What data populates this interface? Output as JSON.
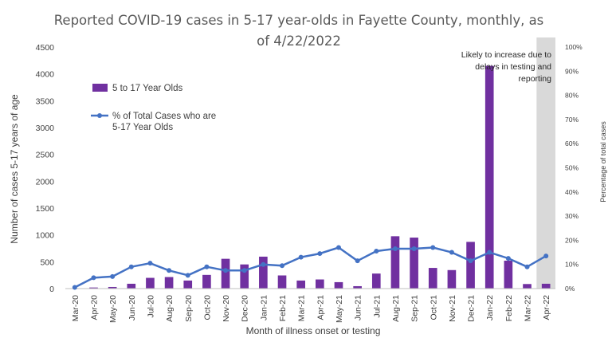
{
  "chart_data": {
    "type": "bar",
    "title_lines": [
      "Reported COVID-19 cases in 5-17 year-olds in Fayette County, monthly, as",
      "of 4/22/2022"
    ],
    "xlabel": "Month of illness onset or testing",
    "ylabel": "Number of cases 5-17 years of age",
    "y2label": "Percentage of total cases",
    "categories": [
      "Mar-20",
      "Apr-20",
      "May-20",
      "Jun-20",
      "Jul-20",
      "Aug-20",
      "Sep-20",
      "Oct-20",
      "Nov-20",
      "Dec-20",
      "Jan-21",
      "Feb-21",
      "Mar-21",
      "Apr-21",
      "May-21",
      "Jun-21",
      "Jul-21",
      "Aug-21",
      "Sep-21",
      "Oct-21",
      "Nov-21",
      "Dec-21",
      "Jan-22",
      "Feb-22",
      "Mar-22",
      "Apr-22"
    ],
    "ylim": [
      0,
      4500
    ],
    "yticks": [
      "0",
      "500",
      "1000",
      "1500",
      "2000",
      "2500",
      "3000",
      "3500",
      "4000",
      "4500"
    ],
    "y2lim": [
      0,
      100
    ],
    "y2ticks": [
      "0%",
      "10%",
      "20%",
      "30%",
      "40%",
      "50%",
      "60%",
      "70%",
      "80%",
      "90%",
      "100%"
    ],
    "series": [
      {
        "name": "5 to 17 Year Olds",
        "kind": "bar",
        "axis": "left",
        "color": "#7030A0",
        "values": [
          5,
          20,
          30,
          90,
          200,
          215,
          150,
          255,
          555,
          450,
          595,
          245,
          150,
          170,
          120,
          45,
          280,
          975,
          950,
          385,
          345,
          870,
          4150,
          520,
          85,
          90
        ]
      },
      {
        "name_lines": [
          "% of Total Cases who are",
          "5-17 Year Olds"
        ],
        "kind": "line",
        "axis": "right",
        "color": "#4472C4",
        "values": [
          0.5,
          4.5,
          5,
          9,
          10.5,
          7.5,
          5.5,
          9,
          7.5,
          7.5,
          10,
          9.5,
          13,
          14.5,
          17,
          11.5,
          15.5,
          16.5,
          16.5,
          17,
          15,
          11.5,
          15,
          12.5,
          9,
          13.5
        ]
      }
    ],
    "shaded_category": "Apr-22",
    "shade_color": "#D9D9D9",
    "annotation_lines": [
      "Likely to increase due to",
      "delays in testing and",
      "reporting"
    ],
    "legend_position": "top-left",
    "grid": false
  }
}
